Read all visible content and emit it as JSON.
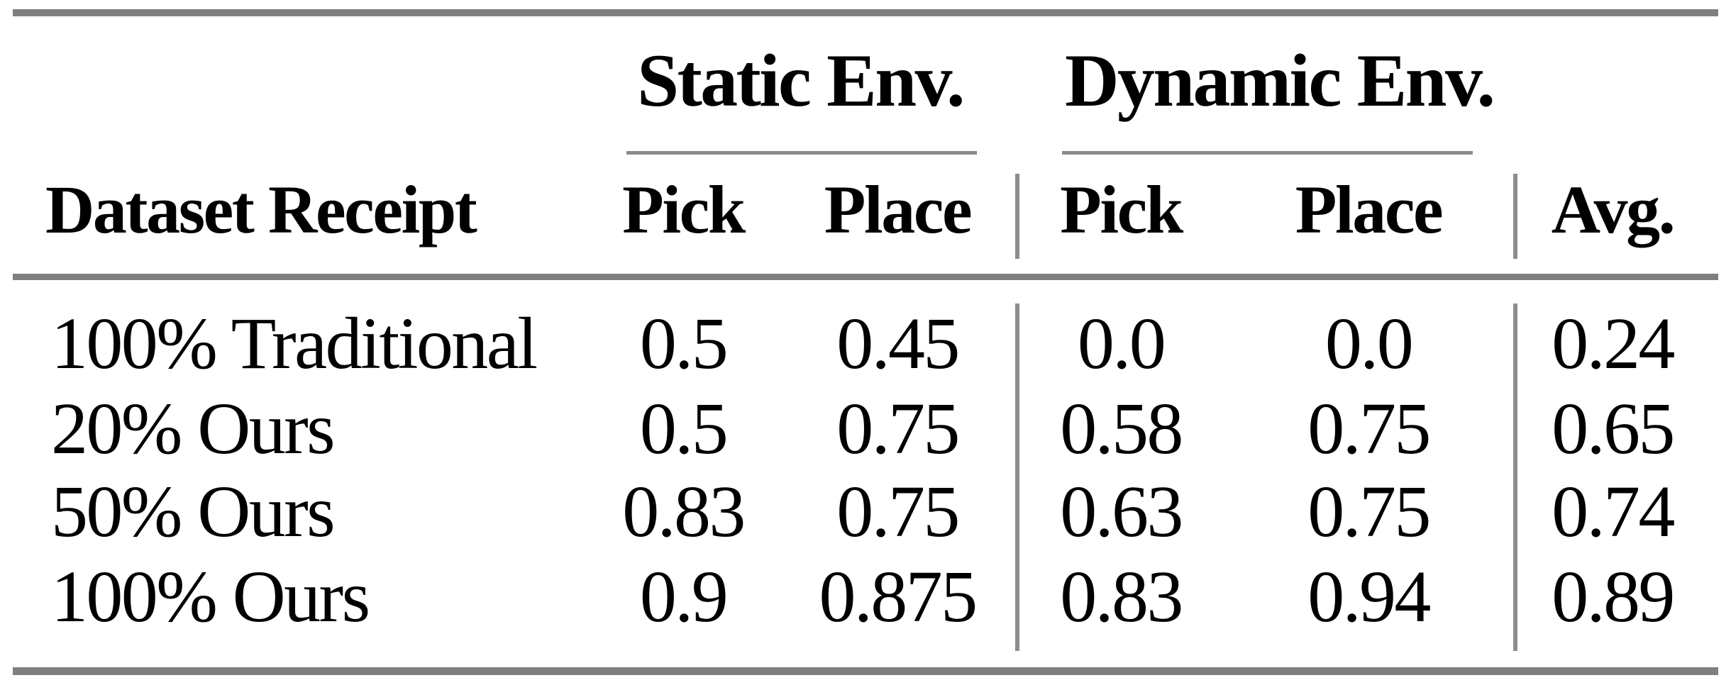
{
  "table": {
    "spanners": {
      "static": "Static Env.",
      "dynamic": "Dynamic Env."
    },
    "header": {
      "row_label": "Dataset Receipt",
      "static_pick": "Pick",
      "static_place": "Place",
      "dynamic_pick": "Pick",
      "dynamic_place": "Place",
      "avg": "Avg."
    },
    "rows": [
      {
        "label": "100% Traditional",
        "static_pick": "0.5",
        "static_place": "0.45",
        "dynamic_pick": "0.0",
        "dynamic_place": "0.0",
        "avg": "0.24"
      },
      {
        "label": "20% Ours",
        "static_pick": "0.5",
        "static_place": "0.75",
        "dynamic_pick": "0.58",
        "dynamic_place": "0.75",
        "avg": "0.65"
      },
      {
        "label": "50% Ours",
        "static_pick": "0.83",
        "static_place": "0.75",
        "dynamic_pick": "0.63",
        "dynamic_place": "0.75",
        "avg": "0.74"
      },
      {
        "label": "100% Ours",
        "static_pick": "0.9",
        "static_place": "0.875",
        "dynamic_pick": "0.83",
        "dynamic_place": "0.94",
        "avg": "0.89"
      }
    ]
  },
  "colors": {
    "background": "#ffffff",
    "text": "#000000",
    "thick_rule": "#7f7f7f",
    "thin_rule": "#8b8b8b"
  }
}
